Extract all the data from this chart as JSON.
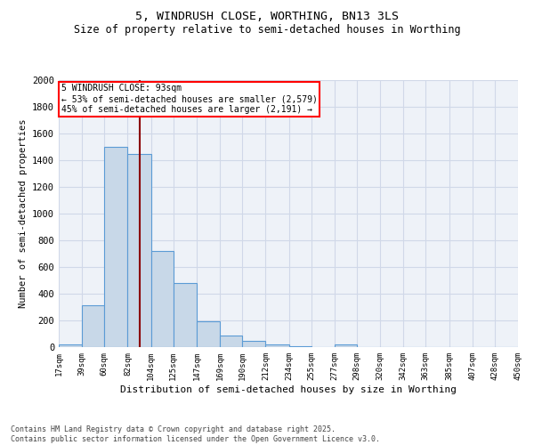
{
  "title1": "5, WINDRUSH CLOSE, WORTHING, BN13 3LS",
  "title2": "Size of property relative to semi-detached houses in Worthing",
  "xlabel": "Distribution of semi-detached houses by size in Worthing",
  "ylabel": "Number of semi-detached properties",
  "footer1": "Contains HM Land Registry data © Crown copyright and database right 2025.",
  "footer2": "Contains public sector information licensed under the Open Government Licence v3.0.",
  "annotation_line1": "5 WINDRUSH CLOSE: 93sqm",
  "annotation_line2": "← 53% of semi-detached houses are smaller (2,579)",
  "annotation_line3": "45% of semi-detached houses are larger (2,191) →",
  "bar_edges": [
    17,
    39,
    60,
    82,
    104,
    125,
    147,
    169,
    190,
    212,
    234,
    255,
    277,
    298,
    320,
    342,
    363,
    385,
    407,
    428,
    450
  ],
  "bar_heights": [
    20,
    315,
    1500,
    1450,
    720,
    480,
    195,
    90,
    45,
    20,
    5,
    0,
    20,
    0,
    0,
    0,
    0,
    0,
    0,
    0
  ],
  "bar_color": "#c8d8e8",
  "bar_edge_color": "#5b9bd5",
  "vline_x": 93,
  "vline_color": "#8b0000",
  "ylim": [
    0,
    2000
  ],
  "xlim": [
    17,
    450
  ],
  "grid_color": "#d0d8e8",
  "bg_color": "#eef2f8",
  "yticks": [
    0,
    200,
    400,
    600,
    800,
    1000,
    1200,
    1400,
    1600,
    1800,
    2000
  ]
}
